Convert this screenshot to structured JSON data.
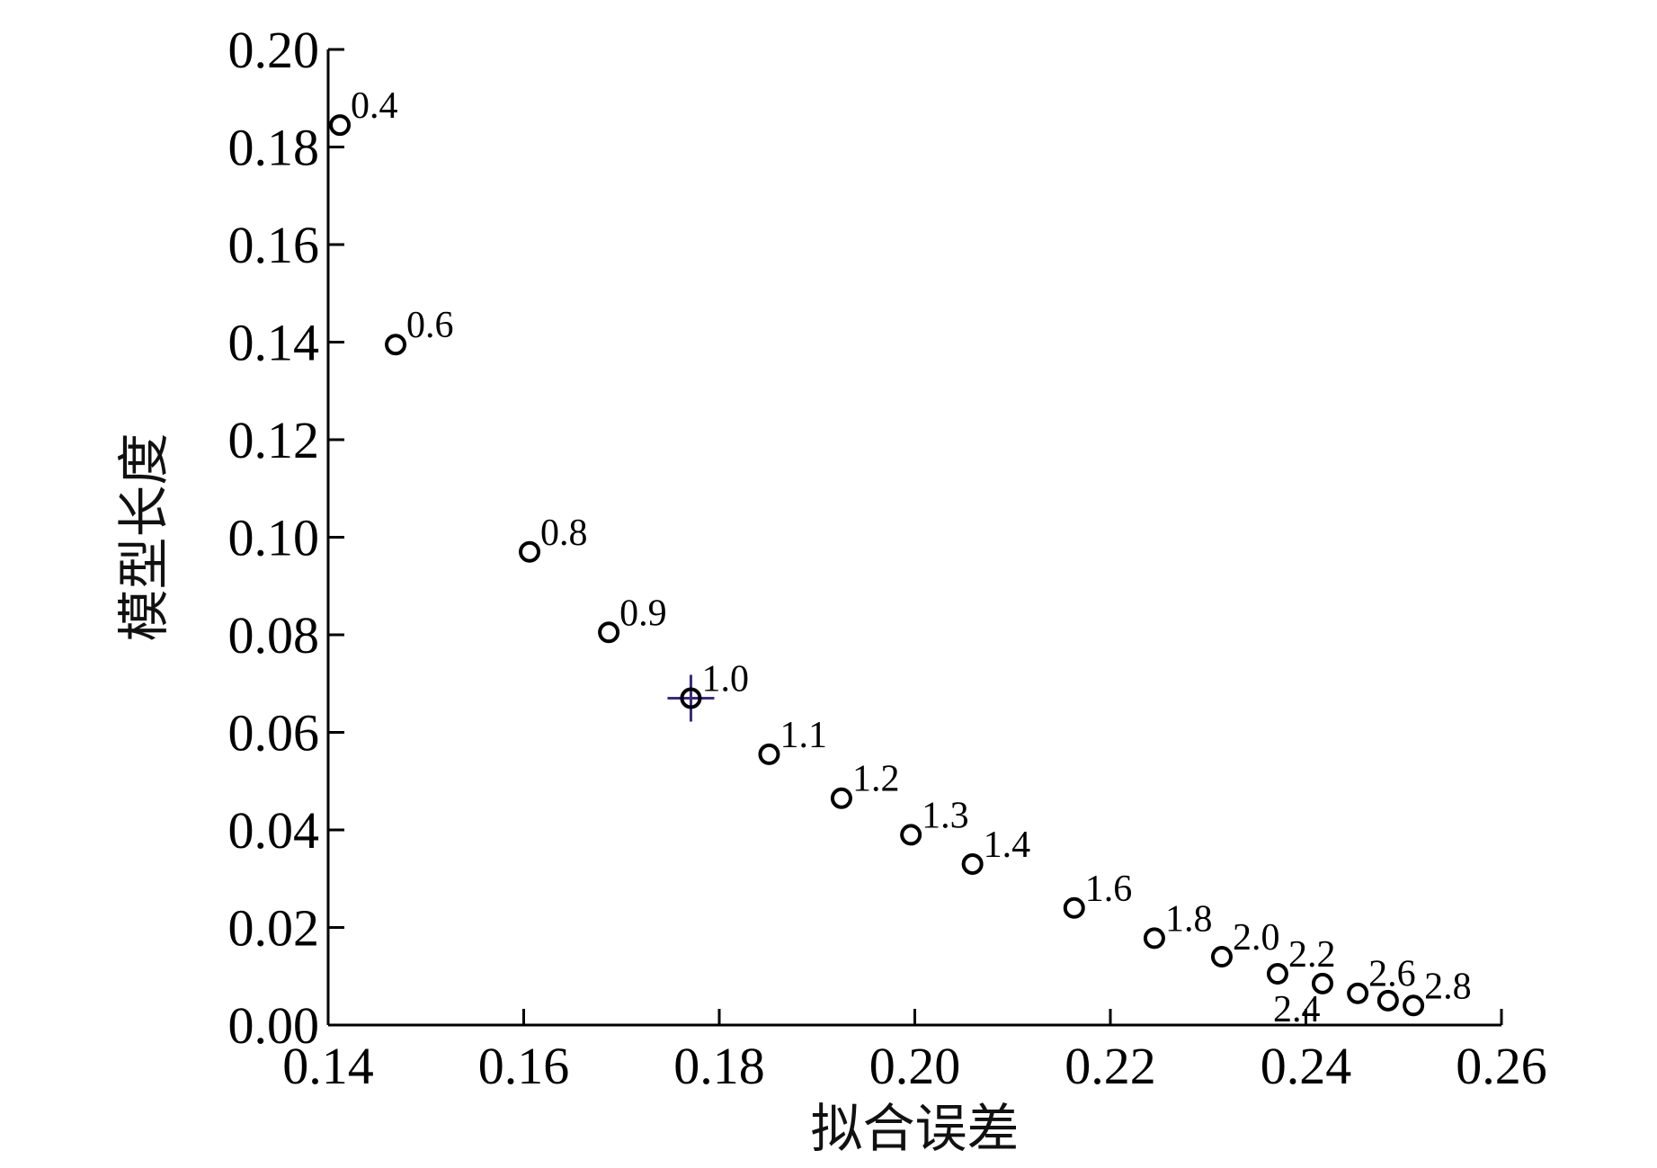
{
  "chart_data": {
    "type": "scatter",
    "title": "",
    "xlabel": "拟合误差",
    "ylabel": "模型长度",
    "xlim": [
      0.14,
      0.26
    ],
    "ylim": [
      0.0,
      0.2
    ],
    "xticks": [
      0.14,
      0.16,
      0.18,
      0.2,
      0.22,
      0.24,
      0.26
    ],
    "yticks": [
      0.0,
      0.02,
      0.04,
      0.06,
      0.08,
      0.1,
      0.12,
      0.14,
      0.16,
      0.18,
      0.2
    ],
    "xtick_labels": [
      "0.14",
      "0.16",
      "0.18",
      "0.20",
      "0.22",
      "0.24",
      "0.26"
    ],
    "ytick_labels": [
      "0.00",
      "0.02",
      "0.04",
      "0.06",
      "0.08",
      "0.10",
      "0.12",
      "0.14",
      "0.16",
      "0.18",
      "0.20"
    ],
    "grid": false,
    "legend": "none",
    "marker": "open-circle",
    "highlight_color": "#3b2a7a",
    "highlighted_label": "1.0",
    "points": [
      {
        "label": "0.4",
        "x": 0.1412,
        "y": 0.1845
      },
      {
        "label": "0.6",
        "x": 0.1469,
        "y": 0.1395
      },
      {
        "label": "0.8",
        "x": 0.1606,
        "y": 0.097
      },
      {
        "label": "0.9",
        "x": 0.1687,
        "y": 0.0805
      },
      {
        "label": "1.0",
        "x": 0.1771,
        "y": 0.067
      },
      {
        "label": "1.1",
        "x": 0.1851,
        "y": 0.0555
      },
      {
        "label": "1.2",
        "x": 0.1925,
        "y": 0.0465
      },
      {
        "label": "1.3",
        "x": 0.1996,
        "y": 0.039
      },
      {
        "label": "1.4",
        "x": 0.2059,
        "y": 0.033
      },
      {
        "label": "1.6",
        "x": 0.2163,
        "y": 0.024
      },
      {
        "label": "1.8",
        "x": 0.2245,
        "y": 0.0178
      },
      {
        "label": "2.0",
        "x": 0.2314,
        "y": 0.014
      },
      {
        "label": "2.2",
        "x": 0.2371,
        "y": 0.0105
      },
      {
        "label": "2.4",
        "x": 0.2417,
        "y": 0.0085
      },
      {
        "label": "2.6",
        "x": 0.2453,
        "y": 0.0065
      },
      {
        "label": "",
        "x": 0.2484,
        "y": 0.005
      },
      {
        "label": "2.8",
        "x": 0.251,
        "y": 0.004
      }
    ]
  }
}
